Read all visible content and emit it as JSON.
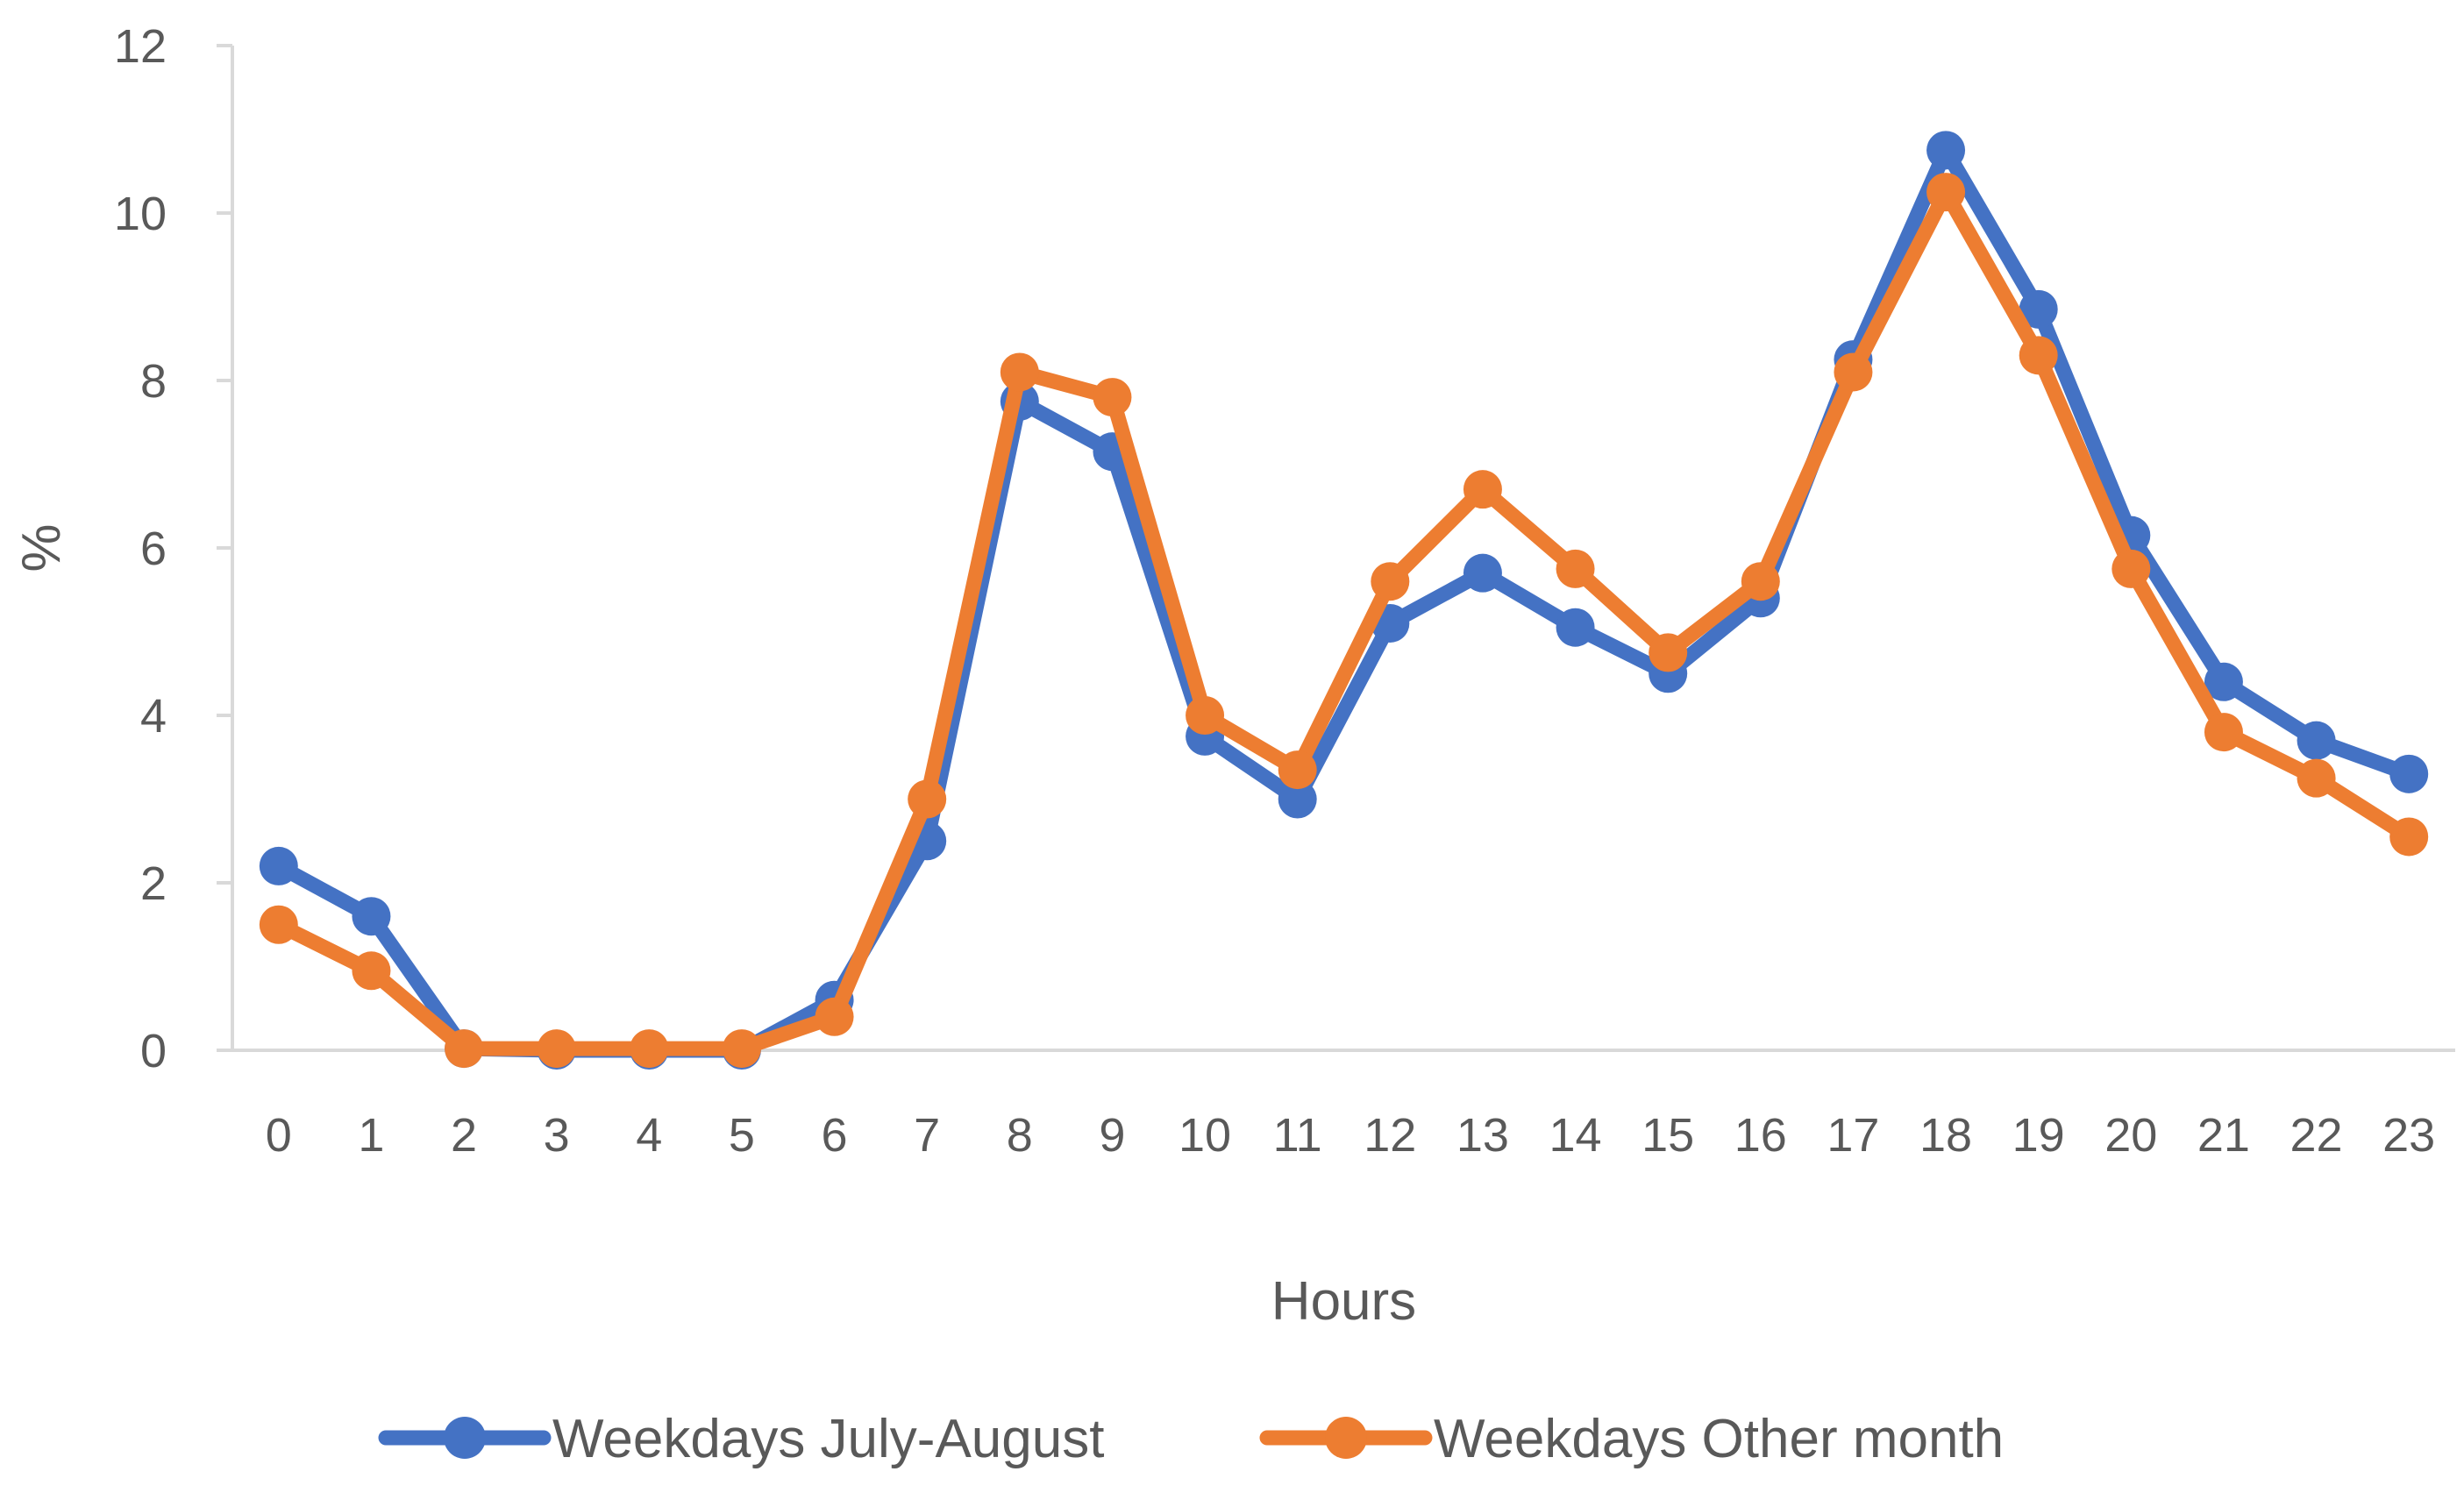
{
  "chart_data": {
    "type": "line",
    "title": "",
    "xlabel": "Hours",
    "ylabel": "%",
    "categories": [
      "0",
      "1",
      "2",
      "3",
      "4",
      "5",
      "6",
      "7",
      "8",
      "9",
      "10",
      "11",
      "12",
      "13",
      "14",
      "15",
      "16",
      "17",
      "18",
      "19",
      "20",
      "21",
      "22",
      "23"
    ],
    "ylim": [
      0,
      12
    ],
    "yticks": [
      "0",
      "2",
      "4",
      "6",
      "8",
      "10",
      "12"
    ],
    "grid": false,
    "legend_position": "bottom",
    "series": [
      {
        "name": "Weekdays July-August",
        "color": "#4472C4",
        "values": [
          2.2,
          1.6,
          0.02,
          0.0,
          0.0,
          0.0,
          0.6,
          2.5,
          7.75,
          7.15,
          3.75,
          3.0,
          5.1,
          5.7,
          5.05,
          4.5,
          5.4,
          8.25,
          10.75,
          8.85,
          6.15,
          4.4,
          3.7,
          3.3
        ]
      },
      {
        "name": "Weekdays Other month",
        "color": "#ED7D31",
        "values": [
          1.5,
          0.95,
          0.02,
          0.02,
          0.02,
          0.02,
          0.4,
          3.0,
          8.1,
          7.8,
          4.0,
          3.35,
          5.6,
          6.7,
          5.75,
          4.75,
          5.6,
          8.1,
          10.25,
          8.3,
          5.75,
          3.8,
          3.25,
          2.55
        ]
      }
    ]
  }
}
